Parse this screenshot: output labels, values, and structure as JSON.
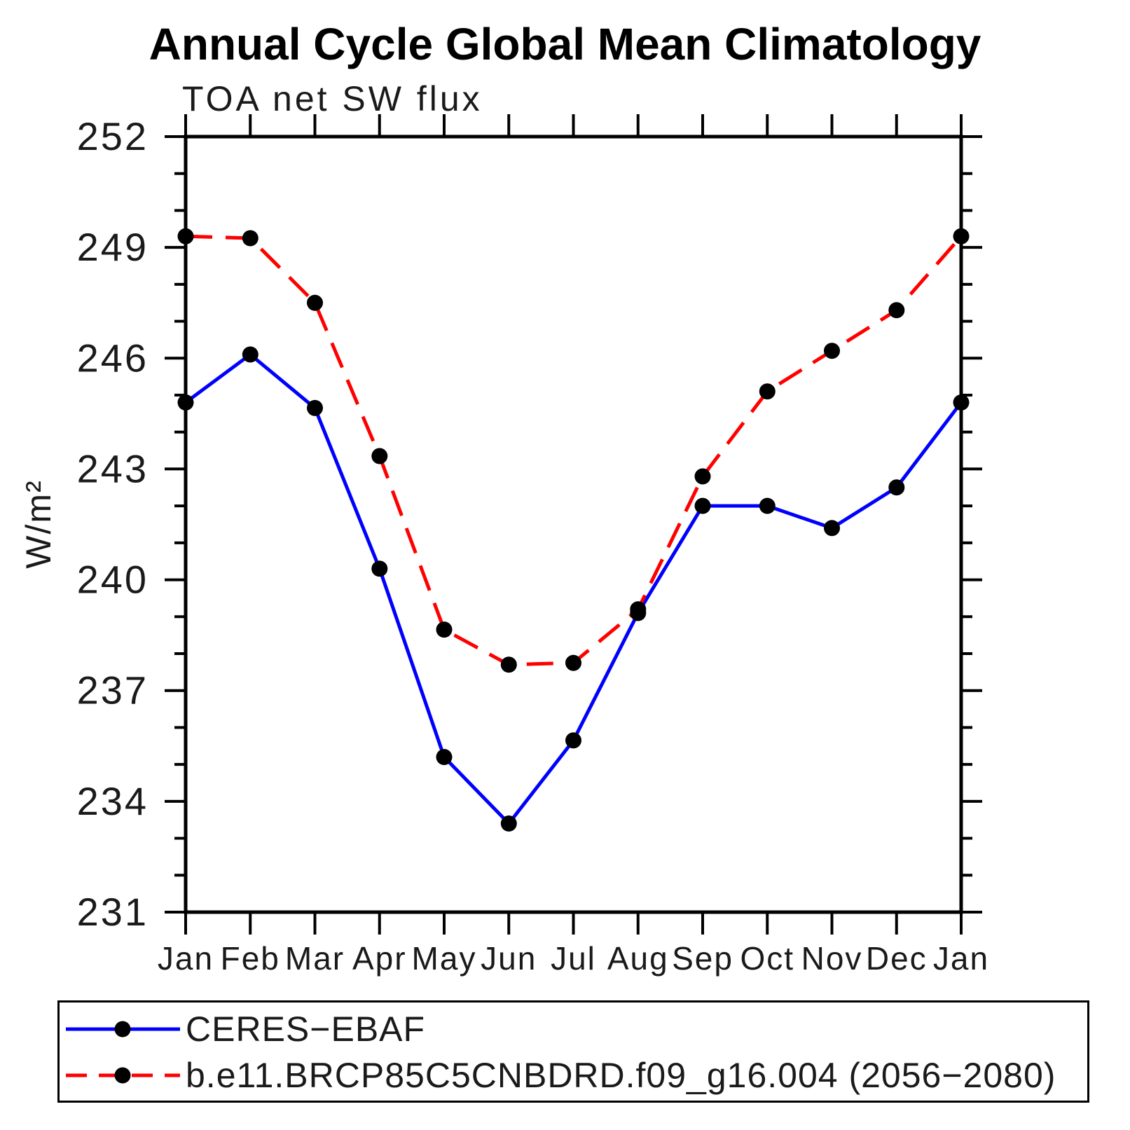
{
  "chart_data": {
    "type": "line",
    "title": "Annual Cycle Global Mean Climatology",
    "subtitle": "TOA net SW flux",
    "ylabel": "W/m²",
    "categories": [
      "Jan",
      "Feb",
      "Mar",
      "Apr",
      "May",
      "Jun",
      "Jul",
      "Aug",
      "Sep",
      "Oct",
      "Nov",
      "Dec",
      "Jan"
    ],
    "ylim": [
      231,
      252
    ],
    "ytick_major": 3,
    "ytick_minor": 1,
    "grid": false,
    "legend_position": "bottom",
    "marker": {
      "shape": "circle",
      "color": "#000000",
      "radius": 11.5
    },
    "axis_color": "#000000",
    "series": [
      {
        "name": "CERES−EBAF",
        "color": "#0000ff",
        "style": "solid",
        "values": [
          244.8,
          246.1,
          244.65,
          240.3,
          235.2,
          233.4,
          235.65,
          239.1,
          242.0,
          242.0,
          241.4,
          242.5,
          244.8
        ]
      },
      {
        "name": "b.e11.BRCP85C5CNBDRD.f09_g16.004 (2056−2080)",
        "color": "#ff0000",
        "style": "dashed",
        "values": [
          249.3,
          249.25,
          247.5,
          243.35,
          238.65,
          237.7,
          237.75,
          239.2,
          242.8,
          245.1,
          246.2,
          247.3,
          249.3
        ]
      }
    ]
  }
}
